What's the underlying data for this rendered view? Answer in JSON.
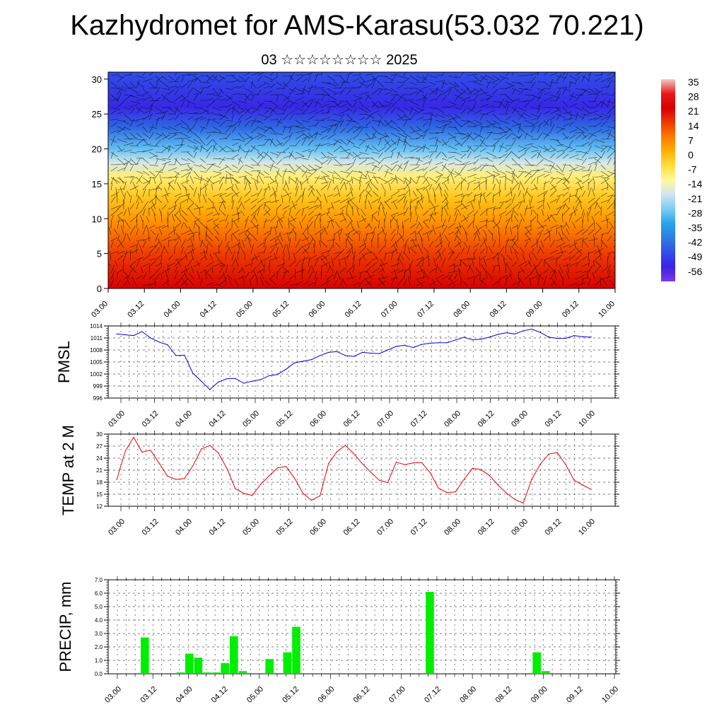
{
  "title": "Kazhydromet for AMS-Karasu(53.032 70.221)",
  "subtitle": "03 ☆☆☆☆☆☆☆☆ 2025",
  "chart_data": [
    {
      "type": "heatmap",
      "title": "",
      "xlabel": "",
      "ylabel": "",
      "x_ticks": [
        "03.00",
        "03.12",
        "04.00",
        "04.12",
        "05.00",
        "05.12",
        "06.00",
        "06.12",
        "07.00",
        "07.12",
        "08.00",
        "08.12",
        "09.00",
        "09.12",
        "10.00"
      ],
      "y_ticks": [
        0,
        5,
        10,
        15,
        20,
        25,
        30
      ],
      "ylim": [
        0,
        31
      ],
      "colorbar_labels": [
        "35",
        "28",
        "21",
        "14",
        "7",
        "0",
        "-7",
        "-14",
        "-21",
        "-28",
        "-35",
        "-42",
        "-49",
        "-56"
      ],
      "colorbar_colors": [
        "#f4c9c9",
        "#e81a1a",
        "#d80000",
        "#ee3c00",
        "#ff7b00",
        "#ffb000",
        "#ffe040",
        "#fffaa0",
        "#cfe4f2",
        "#7ccbf4",
        "#27a3ee",
        "#2e7de0",
        "#2f4fe6",
        "#3a22e6",
        "#7a3ae8"
      ],
      "temperature_profile": [
        {
          "height": 0,
          "value": 21
        },
        {
          "height": 5,
          "value": 14
        },
        {
          "height": 10,
          "value": 3
        },
        {
          "height": 13,
          "value": -3
        },
        {
          "height": 16,
          "value": -11
        },
        {
          "height": 18,
          "value": -20
        },
        {
          "height": 20,
          "value": -30
        },
        {
          "height": 23,
          "value": -45
        },
        {
          "height": 26,
          "value": -55
        },
        {
          "height": 31,
          "value": -49
        }
      ],
      "wind_vectors": "plotted"
    },
    {
      "type": "line",
      "name": "PMSL",
      "ylabel": "PMSL",
      "color": "#0000dd",
      "x_ticks": [
        "03.00",
        "03.12",
        "04.00",
        "04.12",
        "05.00",
        "05.12",
        "06.00",
        "06.12",
        "07.00",
        "07.12",
        "08.00",
        "08.12",
        "09.00",
        "09.12",
        "10.00"
      ],
      "ylim": [
        996,
        1014
      ],
      "y_ticks": [
        996,
        999,
        1002,
        1005,
        1008,
        1011,
        1014
      ],
      "step_hours": 3,
      "values": [
        1012.0,
        1011.8,
        1011.6,
        1012.6,
        1011.0,
        1010.0,
        1009.3,
        1006.6,
        1006.7,
        1002.2,
        1000.2,
        998.1,
        1000.0,
        1000.8,
        1000.9,
        999.7,
        1000.2,
        1000.6,
        1001.6,
        1001.9,
        1003.2,
        1004.8,
        1005.2,
        1005.6,
        1006.6,
        1007.4,
        1007.6,
        1006.6,
        1006.4,
        1007.4,
        1007.2,
        1007.1,
        1008.0,
        1008.9,
        1009.2,
        1008.6,
        1009.4,
        1009.7,
        1009.8,
        1009.8,
        1010.5,
        1011.2,
        1010.5,
        1010.7,
        1011.2,
        1011.9,
        1012.3,
        1012.0,
        1012.8,
        1013.2,
        1012.4,
        1011.2,
        1010.9,
        1010.9,
        1011.6,
        1011.3,
        1011.2
      ]
    },
    {
      "type": "line",
      "name": "TEMP at 2 M",
      "ylabel": "TEMP at 2 M",
      "color": "#ee0000",
      "x_ticks": [
        "03.00",
        "03.12",
        "04.00",
        "04.12",
        "05.00",
        "05.12",
        "06.00",
        "06.12",
        "07.00",
        "07.12",
        "08.00",
        "08.12",
        "09.00",
        "09.12",
        "10.00"
      ],
      "ylim": [
        12,
        30
      ],
      "y_ticks": [
        12,
        15,
        18,
        21,
        24,
        27,
        30
      ],
      "step_hours": 3,
      "values": [
        18.6,
        25.7,
        29.2,
        25.5,
        26.0,
        22.8,
        19.5,
        18.7,
        18.9,
        22.1,
        26.3,
        27.2,
        25.3,
        21.5,
        16.4,
        15.2,
        14.7,
        17.5,
        19.6,
        21.6,
        21.9,
        19.0,
        15.2,
        13.5,
        14.6,
        22.6,
        25.6,
        27.2,
        25.1,
        22.6,
        20.5,
        18.5,
        17.9,
        23.0,
        22.4,
        22.8,
        22.9,
        20.4,
        16.5,
        15.4,
        15.6,
        18.7,
        21.5,
        21.1,
        19.7,
        17.3,
        15.3,
        13.7,
        12.8,
        18.7,
        22.5,
        25.0,
        25.4,
        22.4,
        18.5,
        17.3,
        16.2
      ]
    },
    {
      "type": "bar",
      "name": "PRECIP, mm",
      "ylabel": "PRECIP, mm",
      "color": "#00ee00",
      "x_ticks": [
        "03.00",
        "03.12",
        "04.00",
        "04.12",
        "05.00",
        "05.12",
        "06.00",
        "06.12",
        "07.00",
        "07.12",
        "08.00",
        "08.12",
        "09.00",
        "09.12",
        "10.00"
      ],
      "ylim": [
        0,
        7
      ],
      "y_ticks": [
        "0.0",
        "1.0",
        "2.0",
        "3.0",
        "4.0",
        "5.0",
        "6.0",
        "7.0"
      ],
      "step_hours": 3,
      "values": [
        0,
        0,
        0,
        2.7,
        0,
        0,
        0,
        0.1,
        1.5,
        1.2,
        0.1,
        0.1,
        0.8,
        2.8,
        0.2,
        0,
        0,
        1.1,
        0,
        1.6,
        3.5,
        0,
        0,
        0,
        0,
        0,
        0,
        0,
        0,
        0,
        0,
        0,
        0,
        0,
        0,
        6.1,
        0,
        0,
        0,
        0,
        0,
        0,
        0,
        0,
        0,
        0.05,
        0,
        1.6,
        0.2,
        0,
        0,
        0,
        0,
        0,
        0,
        0
      ]
    }
  ]
}
